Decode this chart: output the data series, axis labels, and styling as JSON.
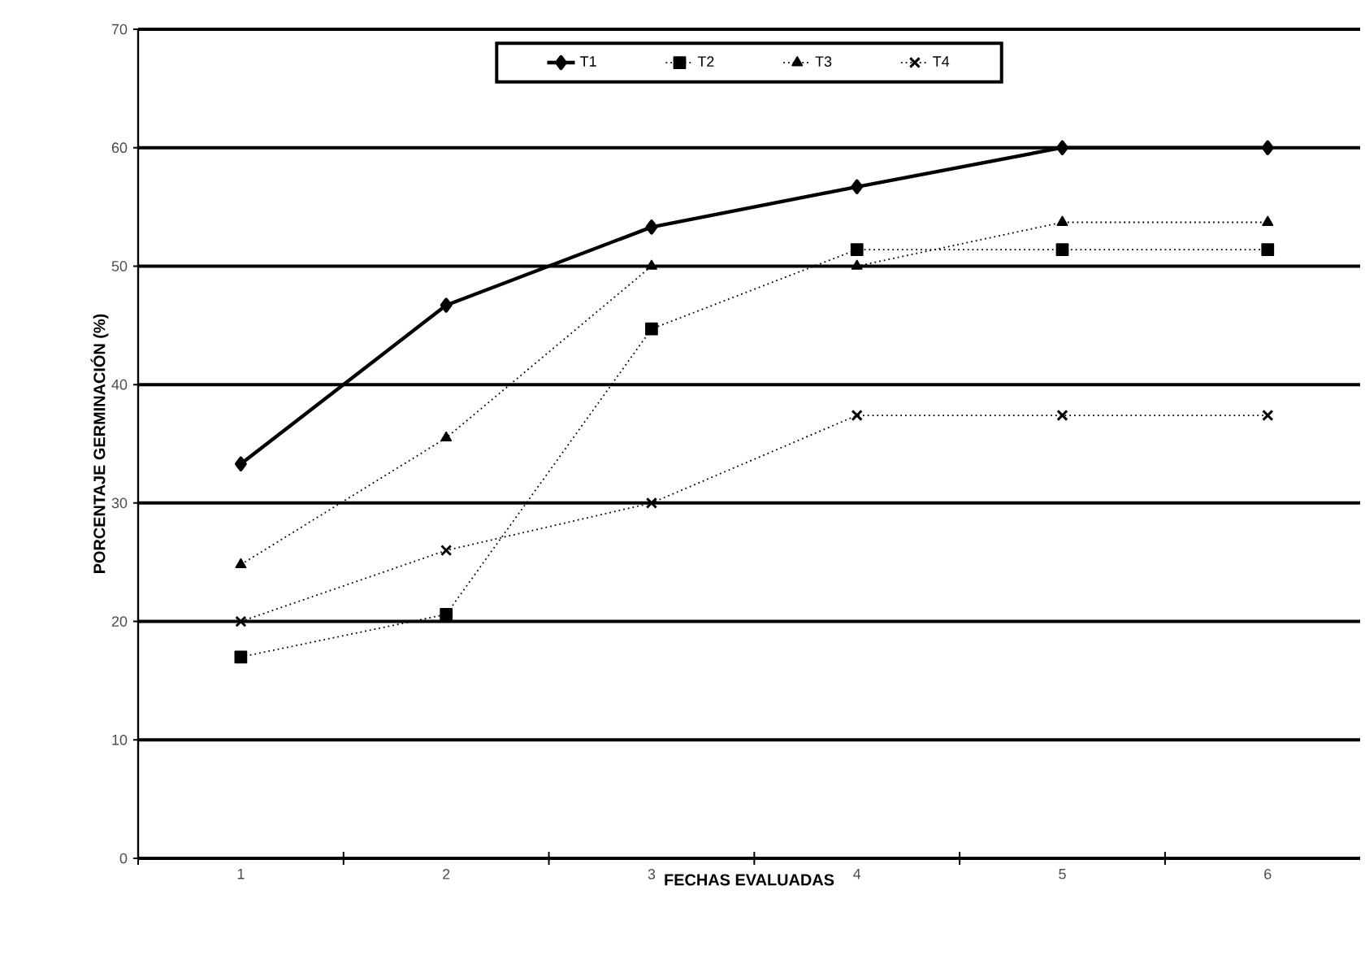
{
  "chart_data": {
    "type": "line",
    "xlabel": "FECHAS EVALUADAS",
    "ylabel": "PORCENTAJE GERMINACIÓN (%)",
    "categories": [
      "1",
      "2",
      "3",
      "4",
      "5",
      "6"
    ],
    "series": [
      {
        "name": "T1",
        "color": "#000000",
        "marker": "diamond",
        "line_style": "solid",
        "values": [
          33.3,
          46.7,
          53.3,
          56.7,
          60,
          60
        ]
      },
      {
        "name": "T2",
        "color": "#000000",
        "marker": "square",
        "line_style": "dotted",
        "values": [
          17,
          20.6,
          44.7,
          51.4,
          51.4,
          51.4
        ]
      },
      {
        "name": "T3",
        "color": "#000000",
        "marker": "triangle",
        "line_style": "dotted",
        "values": [
          24.8,
          35.5,
          50,
          50,
          53.7,
          53.7
        ]
      },
      {
        "name": "T4",
        "color": "#000000",
        "marker": "cross",
        "line_style": "dotted",
        "values": [
          20,
          26,
          30,
          37.4,
          37.4,
          37.4
        ]
      }
    ],
    "ylim": [
      0,
      70
    ],
    "yticks": [
      0,
      10,
      20,
      30,
      40,
      50,
      60,
      70
    ],
    "grid": "y",
    "legend": "top"
  }
}
